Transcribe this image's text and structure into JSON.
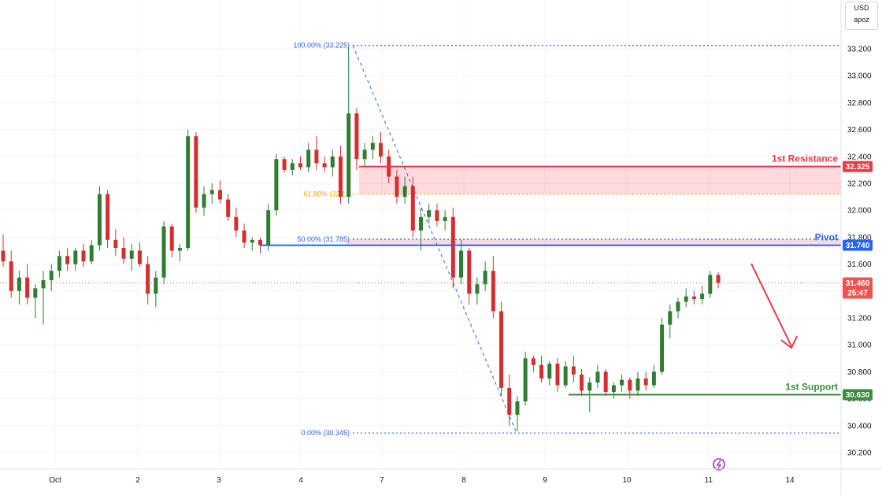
{
  "currency": {
    "code": "USD",
    "sub": "apoz"
  },
  "chart_data": {
    "type": "candlestick",
    "y_range": [
      30.12,
      33.34
    ],
    "y_ticks": [
      {
        "value": 33.2,
        "label": "33.200"
      },
      {
        "value": 33.0,
        "label": "33.000"
      },
      {
        "value": 32.8,
        "label": "32.800"
      },
      {
        "value": 32.6,
        "label": "32.600"
      },
      {
        "value": 32.4,
        "label": "32.400"
      },
      {
        "value": 32.2,
        "label": "32.200"
      },
      {
        "value": 32.0,
        "label": "32.000"
      },
      {
        "value": 31.8,
        "label": "31.800"
      },
      {
        "value": 31.6,
        "label": "31.600"
      },
      {
        "value": 31.4,
        "label": "31.400"
      },
      {
        "value": 31.2,
        "label": "31.200"
      },
      {
        "value": 31.0,
        "label": "31.000"
      },
      {
        "value": 30.8,
        "label": "30.800"
      },
      {
        "value": 30.6,
        "label": "30.600"
      },
      {
        "value": 30.4,
        "label": "30.400"
      },
      {
        "value": 30.2,
        "label": "30.200"
      }
    ],
    "x_ticks": [
      "Oct",
      "2",
      "3",
      "4",
      "7",
      "8",
      "9",
      "10",
      "11",
      "14"
    ],
    "fib_levels": [
      {
        "label": "100.00% (33.225)",
        "value": 33.225,
        "color": "#2962ff"
      },
      {
        "label": "61.80% (32.12",
        "value": 32.12,
        "color": "#f7a600"
      },
      {
        "label": "50.00% (31.785)",
        "value": 31.785,
        "color": "#2962ff"
      },
      {
        "label": "0.00% (30.345)",
        "value": 30.345,
        "color": "#2962ff"
      }
    ],
    "levels": [
      {
        "name": "1st Resistance",
        "value": 32.325,
        "tag": "32.325",
        "color": "#f23645"
      },
      {
        "name": "Pivot",
        "value": 31.74,
        "tag": "31.740",
        "color": "#2962ff"
      },
      {
        "name": "1st Support",
        "value": 30.63,
        "tag": "30.630",
        "color": "#388e3c"
      }
    ],
    "resistance_zone": [
      32.12,
      32.325
    ],
    "pivot_zone": [
      31.74,
      31.785
    ],
    "current_price": {
      "value": 31.46,
      "tag": "31.460",
      "countdown": "25:47"
    },
    "colors": {
      "up": "#26a69a",
      "down": "#ef5350",
      "up_body": "#2e7d32",
      "down_body": "#d32f2f"
    },
    "candles": [
      [
        31.7,
        31.82,
        31.58,
        31.62
      ],
      [
        31.62,
        31.7,
        31.35,
        31.4
      ],
      [
        31.4,
        31.55,
        31.3,
        31.5
      ],
      [
        31.5,
        31.6,
        31.3,
        31.35
      ],
      [
        31.35,
        31.45,
        31.2,
        31.42
      ],
      [
        31.42,
        31.55,
        31.15,
        31.48
      ],
      [
        31.48,
        31.6,
        31.4,
        31.55
      ],
      [
        31.55,
        31.7,
        31.5,
        31.66
      ],
      [
        31.66,
        31.72,
        31.55,
        31.6
      ],
      [
        31.6,
        31.72,
        31.55,
        31.7
      ],
      [
        31.7,
        31.75,
        31.58,
        31.62
      ],
      [
        31.62,
        31.78,
        31.6,
        31.74
      ],
      [
        31.74,
        32.18,
        31.7,
        32.12
      ],
      [
        32.12,
        32.15,
        31.72,
        31.78
      ],
      [
        31.78,
        31.86,
        31.66,
        31.72
      ],
      [
        31.72,
        31.8,
        31.6,
        31.64
      ],
      [
        31.64,
        31.75,
        31.55,
        31.7
      ],
      [
        31.7,
        31.76,
        31.58,
        31.6
      ],
      [
        31.6,
        31.66,
        31.3,
        31.38
      ],
      [
        31.38,
        31.55,
        31.28,
        31.5
      ],
      [
        31.5,
        31.92,
        31.45,
        31.88
      ],
      [
        31.88,
        31.9,
        31.65,
        31.7
      ],
      [
        31.7,
        31.75,
        31.62,
        31.72
      ],
      [
        31.72,
        32.6,
        31.7,
        32.55
      ],
      [
        32.55,
        32.58,
        31.98,
        32.02
      ],
      [
        32.02,
        32.18,
        31.96,
        32.12
      ],
      [
        32.12,
        32.2,
        32.05,
        32.15
      ],
      [
        32.15,
        32.22,
        32.05,
        32.08
      ],
      [
        32.08,
        32.12,
        31.92,
        31.95
      ],
      [
        31.95,
        32.02,
        31.8,
        31.85
      ],
      [
        31.85,
        31.9,
        31.72,
        31.76
      ],
      [
        31.76,
        31.8,
        31.7,
        31.78
      ],
      [
        31.78,
        31.8,
        31.68,
        31.74
      ],
      [
        31.74,
        32.05,
        31.7,
        32.0
      ],
      [
        32.0,
        32.42,
        31.96,
        32.38
      ],
      [
        32.38,
        32.4,
        32.28,
        32.3
      ],
      [
        32.3,
        32.38,
        32.26,
        32.35
      ],
      [
        32.35,
        32.4,
        32.3,
        32.32
      ],
      [
        32.32,
        32.5,
        32.28,
        32.45
      ],
      [
        32.45,
        32.55,
        32.3,
        32.35
      ],
      [
        32.35,
        32.4,
        32.28,
        32.32
      ],
      [
        32.32,
        32.45,
        32.25,
        32.4
      ],
      [
        32.4,
        32.48,
        32.05,
        32.1
      ],
      [
        32.1,
        33.22,
        32.05,
        32.72
      ],
      [
        32.72,
        32.76,
        32.3,
        32.38
      ],
      [
        32.38,
        32.5,
        32.33,
        32.45
      ],
      [
        32.45,
        32.55,
        32.38,
        32.5
      ],
      [
        32.5,
        32.58,
        32.35,
        32.4
      ],
      [
        32.4,
        32.45,
        32.2,
        32.25
      ],
      [
        32.25,
        32.3,
        32.05,
        32.1
      ],
      [
        32.1,
        32.25,
        32.05,
        32.18
      ],
      [
        32.18,
        32.25,
        31.8,
        31.85
      ],
      [
        31.85,
        32.02,
        31.7,
        31.95
      ],
      [
        31.95,
        32.05,
        31.9,
        32.0
      ],
      [
        32.0,
        32.05,
        31.88,
        31.92
      ],
      [
        31.92,
        32.0,
        31.85,
        31.95
      ],
      [
        31.95,
        32.02,
        31.42,
        31.5
      ],
      [
        31.5,
        31.78,
        31.45,
        31.7
      ],
      [
        31.7,
        31.72,
        31.3,
        31.38
      ],
      [
        31.38,
        31.5,
        31.3,
        31.45
      ],
      [
        31.45,
        31.62,
        31.4,
        31.55
      ],
      [
        31.55,
        31.66,
        31.2,
        31.25
      ],
      [
        31.25,
        31.32,
        30.62,
        30.68
      ],
      [
        30.68,
        30.78,
        30.4,
        30.48
      ],
      [
        30.48,
        30.62,
        30.36,
        30.58
      ],
      [
        30.58,
        30.95,
        30.55,
        30.9
      ],
      [
        30.9,
        30.92,
        30.8,
        30.85
      ],
      [
        30.85,
        30.92,
        30.72,
        30.75
      ],
      [
        30.75,
        30.88,
        30.7,
        30.86
      ],
      [
        30.86,
        30.9,
        30.65,
        30.7
      ],
      [
        30.7,
        30.88,
        30.68,
        30.84
      ],
      [
        30.84,
        30.92,
        30.72,
        30.78
      ],
      [
        30.78,
        30.82,
        30.62,
        30.66
      ],
      [
        30.66,
        30.76,
        30.5,
        30.72
      ],
      [
        30.72,
        30.85,
        30.68,
        30.8
      ],
      [
        30.8,
        30.82,
        30.62,
        30.65
      ],
      [
        30.65,
        30.72,
        30.6,
        30.7
      ],
      [
        30.7,
        30.78,
        30.65,
        30.74
      ],
      [
        30.74,
        30.76,
        30.6,
        30.66
      ],
      [
        30.66,
        30.8,
        30.62,
        30.75
      ],
      [
        30.75,
        30.8,
        30.66,
        30.7
      ],
      [
        30.7,
        30.85,
        30.68,
        30.8
      ],
      [
        30.8,
        31.2,
        30.78,
        31.15
      ],
      [
        31.15,
        31.3,
        31.05,
        31.25
      ],
      [
        31.25,
        31.35,
        31.2,
        31.32
      ],
      [
        31.32,
        31.42,
        31.28,
        31.36
      ],
      [
        31.36,
        31.4,
        31.3,
        31.34
      ],
      [
        31.34,
        31.44,
        31.3,
        31.38
      ],
      [
        31.38,
        31.55,
        31.35,
        31.52
      ],
      [
        31.52,
        31.54,
        31.42,
        31.46
      ]
    ]
  }
}
